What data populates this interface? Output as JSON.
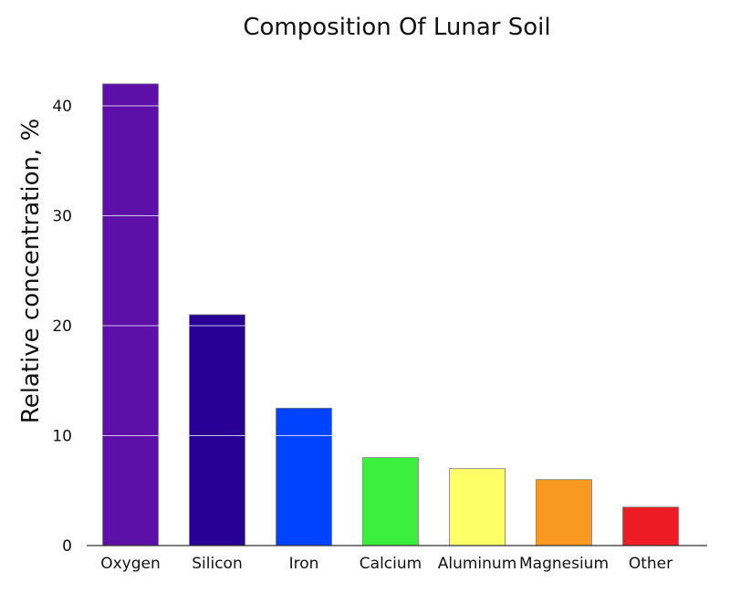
{
  "chart_data": {
    "type": "bar",
    "title": "Composition Of Lunar Soil",
    "xlabel": "",
    "ylabel": "Relative concentration, %",
    "categories": [
      "Oxygen",
      "Silicon",
      "Iron",
      "Calcium",
      "Aluminum",
      "Magnesium",
      "Other"
    ],
    "values": [
      42,
      21,
      12.5,
      8,
      7,
      6,
      3.5
    ],
    "colors": [
      "#5c10a8",
      "#280096",
      "#0043ff",
      "#3def3d",
      "#ffff66",
      "#f89a1f",
      "#ed1c24"
    ],
    "ylim": [
      0,
      45
    ],
    "yticks": [
      0,
      10,
      20,
      30,
      40
    ],
    "grid": "white lines over bars"
  }
}
